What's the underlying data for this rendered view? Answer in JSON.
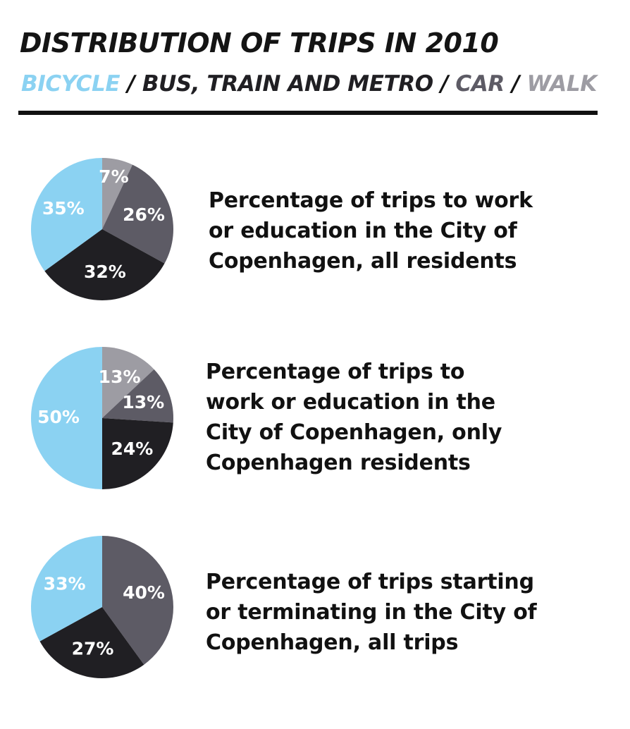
{
  "header": {
    "title": "DISTRIBUTION OF TRIPS IN 2010",
    "separator": " / "
  },
  "colors": {
    "bicycle": "#8bd2f2",
    "transit": "#5d5b65",
    "car": "#201f23",
    "walk": "#9d9ca3"
  },
  "chart_data": [
    {
      "type": "pie",
      "title": "",
      "legend": [
        "BICYCLE",
        "BUS, TRAIN AND METRO",
        "CAR",
        "WALK"
      ],
      "description_lines": [
        "Percentage of trips to work",
        "or education in the City of",
        "Copenhagen, all residents"
      ],
      "slices": [
        {
          "category": "WALK",
          "value": 7,
          "label": "7%",
          "color": "#9d9ca3"
        },
        {
          "category": "BUS, TRAIN AND METRO",
          "value": 26,
          "label": "26%",
          "color": "#5d5b65"
        },
        {
          "category": "CAR",
          "value": 32,
          "label": "32%",
          "color": "#201f23"
        },
        {
          "category": "BICYCLE",
          "value": 35,
          "label": "35%",
          "color": "#8bd2f2"
        }
      ]
    },
    {
      "type": "pie",
      "title": "",
      "legend": [
        "BICYCLE",
        "BUS, TRAIN AND METRO",
        "CAR",
        "WALK"
      ],
      "description_lines": [
        "Percentage of trips to",
        "work or education in the",
        "City of Copenhagen, only",
        "Copenhagen residents"
      ],
      "slices": [
        {
          "category": "WALK",
          "value": 13,
          "label": "13%",
          "color": "#9d9ca3"
        },
        {
          "category": "BUS, TRAIN AND METRO",
          "value": 13,
          "label": "13%",
          "color": "#5d5b65"
        },
        {
          "category": "CAR",
          "value": 24,
          "label": "24%",
          "color": "#201f23"
        },
        {
          "category": "BICYCLE",
          "value": 50,
          "label": "50%",
          "color": "#8bd2f2"
        }
      ]
    },
    {
      "type": "pie",
      "title": "",
      "legend": [
        "BICYCLE",
        "BUS, TRAIN AND METRO",
        "CAR",
        "WALK"
      ],
      "description_lines": [
        "Percentage of trips starting",
        "or terminating in the City of",
        "Copenhagen, all trips"
      ],
      "slices": [
        {
          "category": "BUS, TRAIN AND METRO",
          "value": 40,
          "label": "40%",
          "color": "#5d5b65"
        },
        {
          "category": "CAR",
          "value": 27,
          "label": "27%",
          "color": "#201f23"
        },
        {
          "category": "BICYCLE",
          "value": 33,
          "label": "33%",
          "color": "#8bd2f2"
        }
      ]
    }
  ]
}
